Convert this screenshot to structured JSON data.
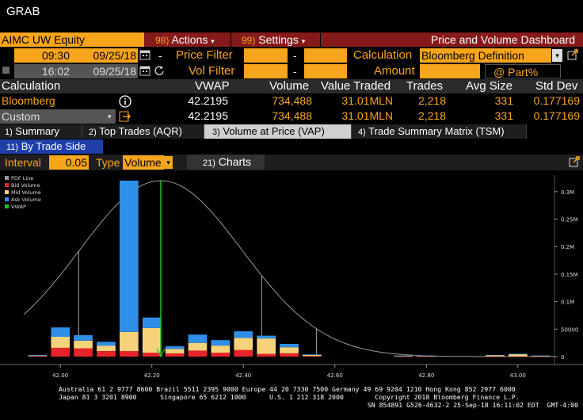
{
  "window": {
    "title": "GRAB"
  },
  "toolbar": {
    "ticker": "AIMC UW Equity",
    "actions_label": "Actions",
    "actions_num": "98)",
    "settings_label": "Settings",
    "settings_num": "99)",
    "dashboard_title": "Price and Volume Dashboard"
  },
  "filters": {
    "start_time": "09:30",
    "start_date": "09/25/18",
    "end_time": "16:02",
    "end_date": "09/25/18",
    "price_filter_label": "Price Filter",
    "vol_filter_label": "Vol Filter",
    "dash": "-",
    "calculation_label": "Calculation",
    "calculation_value": "Bloomberg Definition",
    "amount_label": "Amount",
    "part_label": "@ Part%"
  },
  "summary_table": {
    "headers": [
      "Calculation",
      "VWAP",
      "Volume",
      "Value Traded",
      "Trades",
      "Avg Size",
      "Std Dev"
    ],
    "rows": [
      {
        "calc": "Bloomberg",
        "vwap": "42.2195",
        "volume": "734,488",
        "value": "31.01MLN",
        "trades": "2,218",
        "avg": "331",
        "std": "0.177169"
      },
      {
        "calc": "Custom",
        "vwap": "42.2195",
        "volume": "734,488",
        "value": "31.01MLN",
        "trades": "2,218",
        "avg": "331",
        "std": "0.177169"
      }
    ]
  },
  "tabs": [
    {
      "num": "1)",
      "label": "Summary"
    },
    {
      "num": "2)",
      "label": "Top Trades (AQR)"
    },
    {
      "num": "3)",
      "label": "Volume at Price (VAP)"
    },
    {
      "num": "4)",
      "label": "Trade Summary Matrix (TSM)"
    }
  ],
  "subtab": {
    "num": "11)",
    "label": "By Trade Side"
  },
  "controls": {
    "interval_label": "Interval",
    "interval_value": "0.05",
    "type_label": "Type",
    "type_value": "Volume",
    "charts_num": "21)",
    "charts_label": "Charts"
  },
  "colors": {
    "orange": "#f8a51e",
    "bid": "#e8232a",
    "mid": "#f6d27a",
    "ask": "#2f8fe8",
    "vwap": "#22c322",
    "pdf": "#999999"
  },
  "chart_data": {
    "type": "bar",
    "stacked": true,
    "legend": [
      "PDF Line",
      "Bid Volume",
      "Mid Volume",
      "Ask Volume",
      "VWAP"
    ],
    "legend_placement": "top-left",
    "x_ticks": [
      "42.00",
      "42.20",
      "42.40",
      "42.60",
      "42.80",
      "43.00"
    ],
    "y_ticks": [
      "0",
      "50000",
      "0.1M",
      "0.15M",
      "0.2M",
      "0.25M",
      "0.3M"
    ],
    "xlim": [
      41.92,
      43.08
    ],
    "ylim": [
      0,
      0.33
    ],
    "vwap": 42.2195,
    "pdf_mean": 42.2195,
    "pdf_sd": 0.177169,
    "pdf_peak": 0.32,
    "pdf_stems": [
      42.04,
      42.44,
      42.56
    ],
    "bins": [
      {
        "x": 41.95,
        "bid": 0.001,
        "mid": 0.001,
        "ask": 0.001
      },
      {
        "x": 42.0,
        "bid": 0.016,
        "mid": 0.02,
        "ask": 0.017
      },
      {
        "x": 42.05,
        "bid": 0.015,
        "mid": 0.014,
        "ask": 0.01
      },
      {
        "x": 42.1,
        "bid": 0.01,
        "mid": 0.01,
        "ask": 0.007
      },
      {
        "x": 42.15,
        "bid": 0.01,
        "mid": 0.035,
        "ask": 0.275
      },
      {
        "x": 42.2,
        "bid": 0.007,
        "mid": 0.045,
        "ask": 0.019
      },
      {
        "x": 42.25,
        "bid": 0.006,
        "mid": 0.008,
        "ask": 0.005
      },
      {
        "x": 42.3,
        "bid": 0.011,
        "mid": 0.014,
        "ask": 0.015
      },
      {
        "x": 42.35,
        "bid": 0.007,
        "mid": 0.013,
        "ask": 0.01
      },
      {
        "x": 42.4,
        "bid": 0.012,
        "mid": 0.022,
        "ask": 0.012
      },
      {
        "x": 42.45,
        "bid": 0.005,
        "mid": 0.028,
        "ask": 0.005
      },
      {
        "x": 42.5,
        "bid": 0.006,
        "mid": 0.011,
        "ask": 0.006
      },
      {
        "x": 42.55,
        "bid": 0.001,
        "mid": 0.002,
        "ask": 0.001
      },
      {
        "x": 42.75,
        "bid": 0.0005,
        "mid": 0.001,
        "ask": 0.0005
      },
      {
        "x": 42.8,
        "bid": 0.0005,
        "mid": 0.001,
        "ask": 0.0005
      },
      {
        "x": 42.95,
        "bid": 0.0005,
        "mid": 0.002,
        "ask": 0.0005
      },
      {
        "x": 43.0,
        "bid": 0.0005,
        "mid": 0.004,
        "ask": 0.0005
      },
      {
        "x": 43.05,
        "bid": 0.0005,
        "mid": 0.001,
        "ask": 0.0005
      }
    ]
  },
  "footer": {
    "line1": "Australia 61 2 9777 8600 Brazil 5511 2395 9000 Europe 44 20 7330 7500 Germany 49 69 9204 1210 Hong Kong 852 2977 6000",
    "line2": "Japan 81 3 3201 8900      Singapore 65 6212 1000      U.S. 1 212 318 2000        Copyright 2018 Bloomberg Finance L.P.",
    "line3": "SN 854891 G526-4632-2 25-Sep-18 16:11:02 EDT  GMT-4:00"
  }
}
